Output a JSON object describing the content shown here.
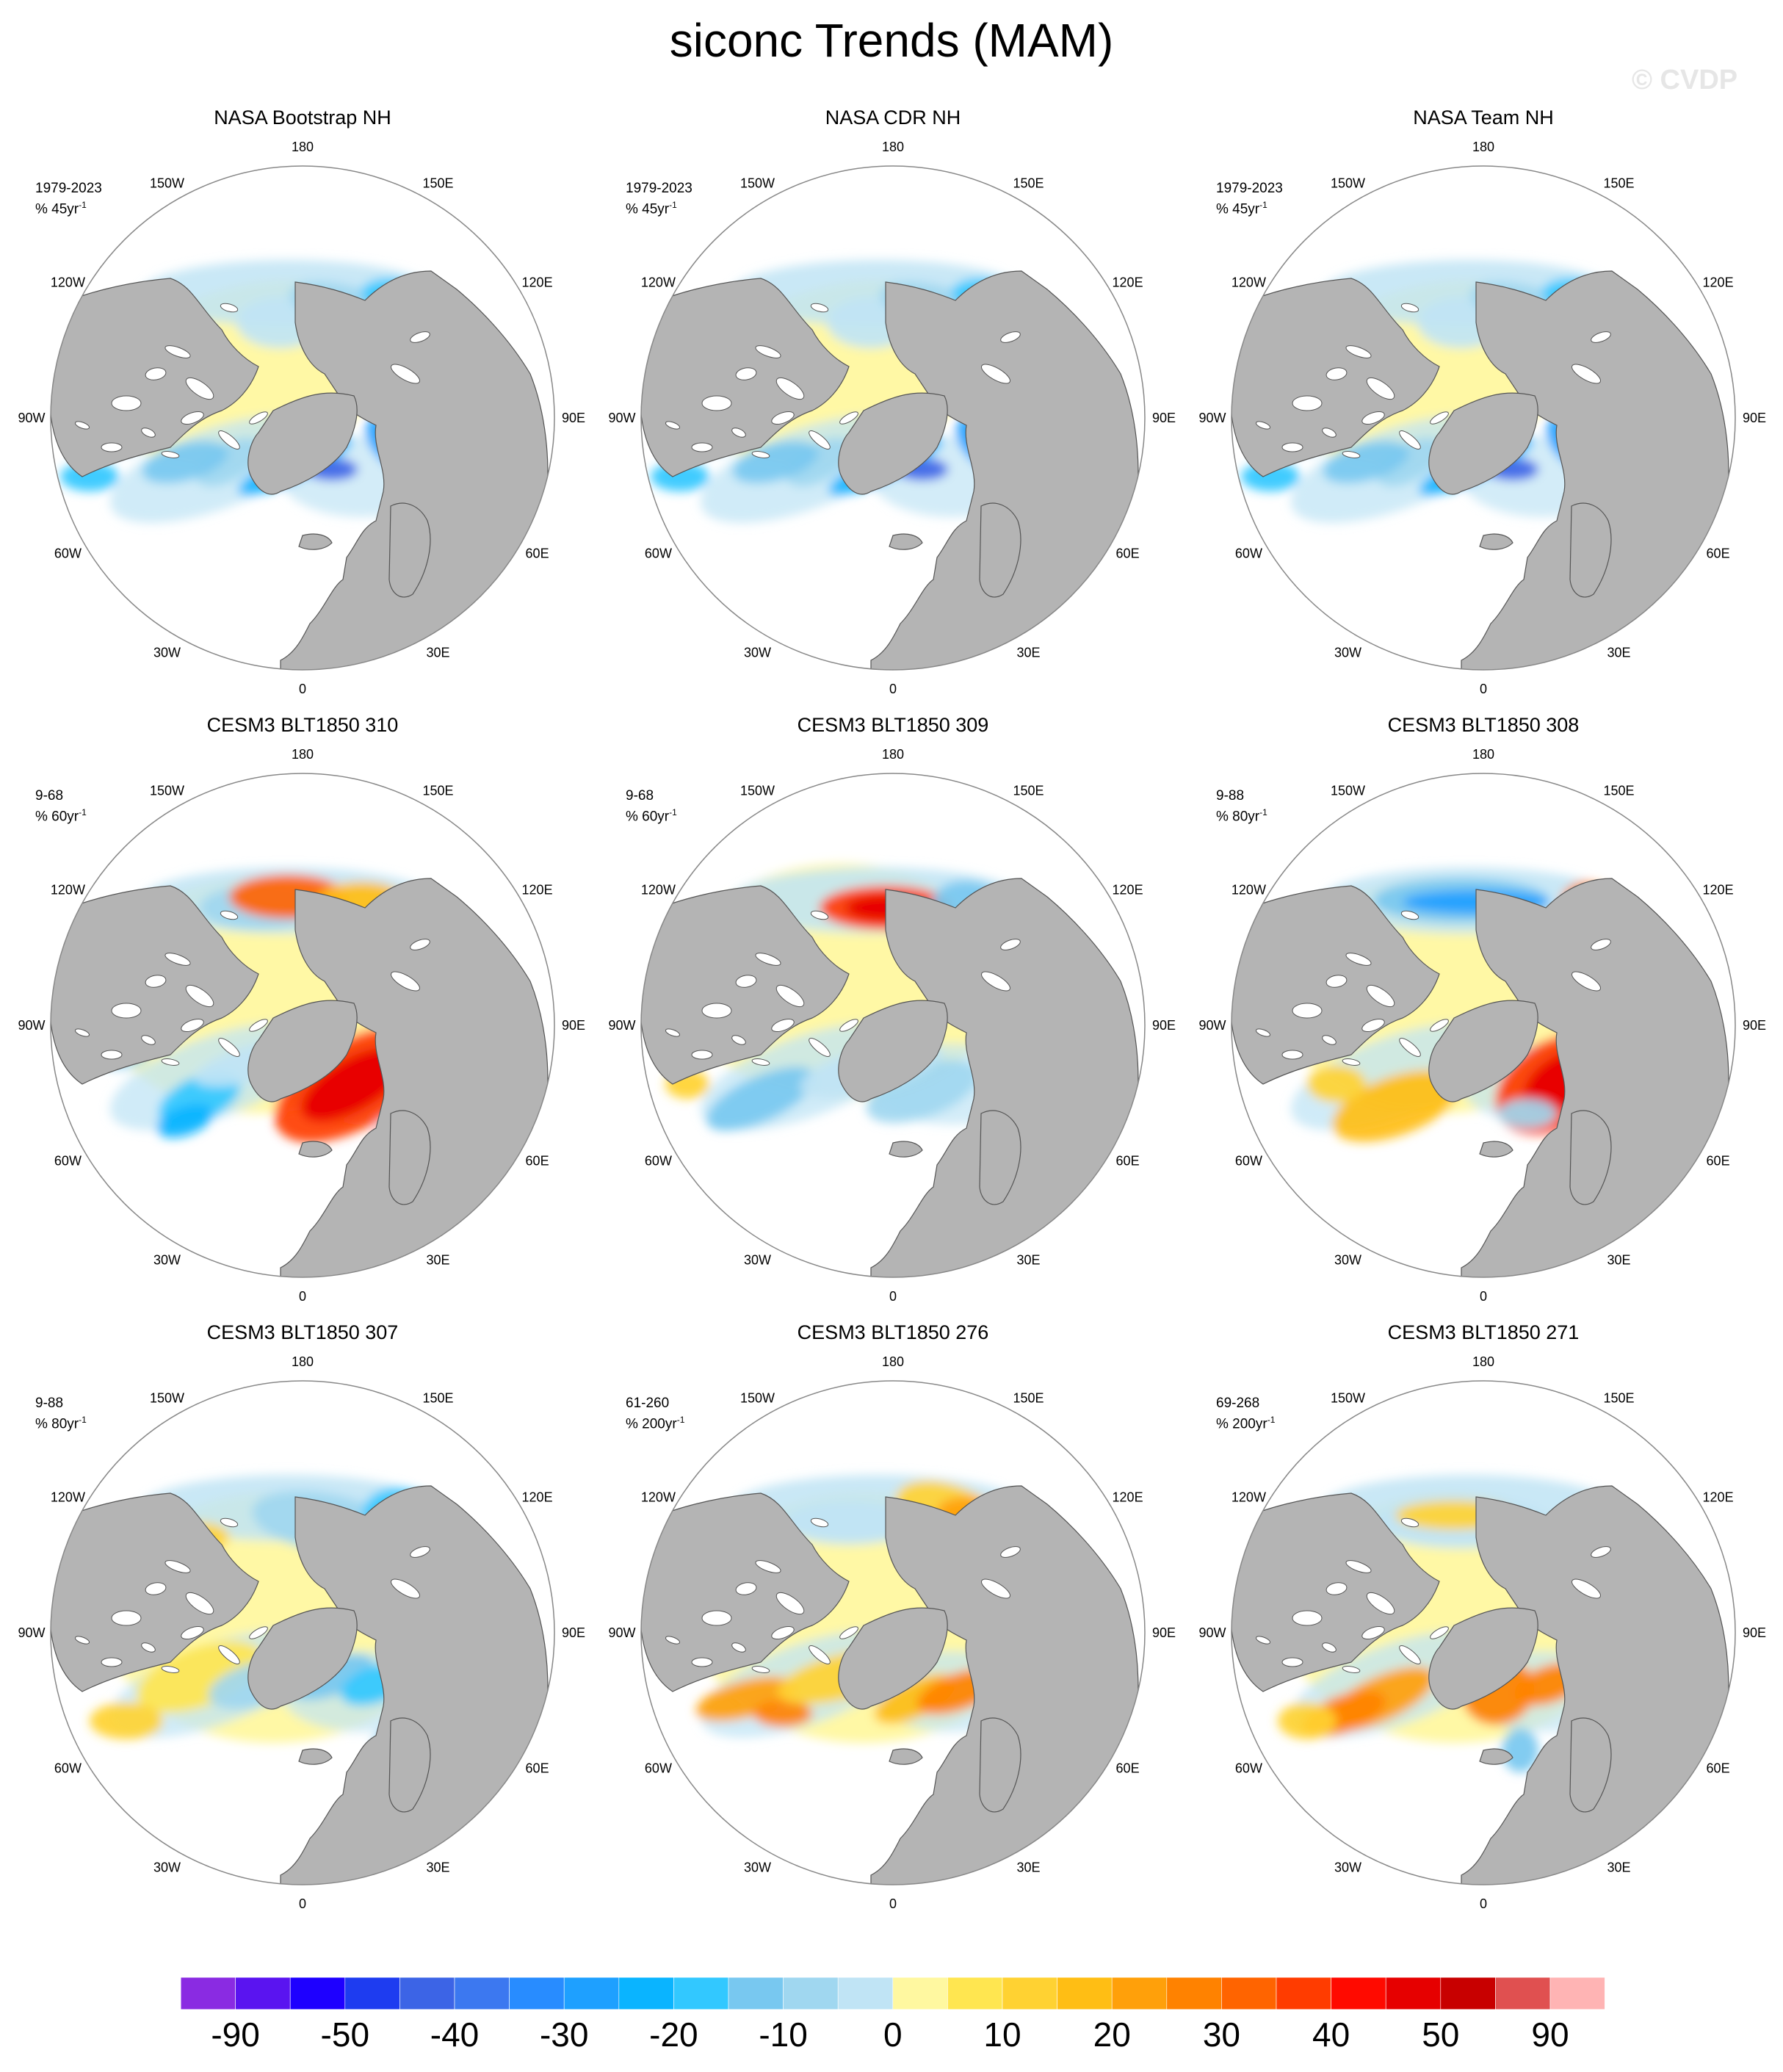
{
  "figure": {
    "title": "siconc Trends (MAM)",
    "watermark": "© CVDP"
  },
  "style": {
    "land": "#b4b4b4",
    "ocean": "#ffffff",
    "coast": "#555555",
    "circle": "#888888"
  },
  "longitude_labels": [
    "180",
    "150E",
    "120E",
    "90E",
    "60E",
    "30E",
    "0",
    "30W",
    "60W",
    "90W",
    "120W",
    "150W"
  ],
  "panels": [
    {
      "title": "NASA Bootstrap NH",
      "period": "1979-2023",
      "units_prefix": "% 45yr",
      "units_exp": "-1",
      "pattern": "obs"
    },
    {
      "title": "NASA CDR NH",
      "period": "1979-2023",
      "units_prefix": "% 45yr",
      "units_exp": "-1",
      "pattern": "obs"
    },
    {
      "title": "NASA Team NH",
      "period": "1979-2023",
      "units_prefix": "% 45yr",
      "units_exp": "-1",
      "pattern": "obs"
    },
    {
      "title": "CESM3 BLT1850 310",
      "period": "9-68",
      "units_prefix": "% 60yr",
      "units_exp": "-1",
      "pattern": "m310"
    },
    {
      "title": "CESM3 BLT1850 309",
      "period": "9-68",
      "units_prefix": "% 60yr",
      "units_exp": "-1",
      "pattern": "m309"
    },
    {
      "title": "CESM3 BLT1850 308",
      "period": "9-88",
      "units_prefix": "% 80yr",
      "units_exp": "-1",
      "pattern": "m308"
    },
    {
      "title": "CESM3 BLT1850 307",
      "period": "9-88",
      "units_prefix": "% 80yr",
      "units_exp": "-1",
      "pattern": "m307"
    },
    {
      "title": "CESM3 BLT1850 276",
      "period": "61-260",
      "units_prefix": "% 200yr",
      "units_exp": "-1",
      "pattern": "m276"
    },
    {
      "title": "CESM3 BLT1850 271",
      "period": "69-268",
      "units_prefix": "% 200yr",
      "units_exp": "-1",
      "pattern": "m271"
    }
  ],
  "colorbar": {
    "colors": [
      "#8a2be2",
      "#5a14f0",
      "#1e00ff",
      "#1e3cf0",
      "#3c64e6",
      "#3c78f0",
      "#288cff",
      "#1ea0ff",
      "#0ab4ff",
      "#32c8ff",
      "#78c8f0",
      "#a0d7f0",
      "#c0e4f5",
      "#fff8a0",
      "#ffe650",
      "#ffd232",
      "#ffbe14",
      "#ffa00a",
      "#ff8200",
      "#ff6400",
      "#ff3c00",
      "#ff0a00",
      "#e60000",
      "#c80000",
      "#e05050",
      "#ffb4b4"
    ],
    "labels": [
      "-90",
      "-50",
      "-40",
      "-30",
      "-20",
      "-10",
      "0",
      "10",
      "20",
      "30",
      "40",
      "50",
      "90"
    ]
  }
}
